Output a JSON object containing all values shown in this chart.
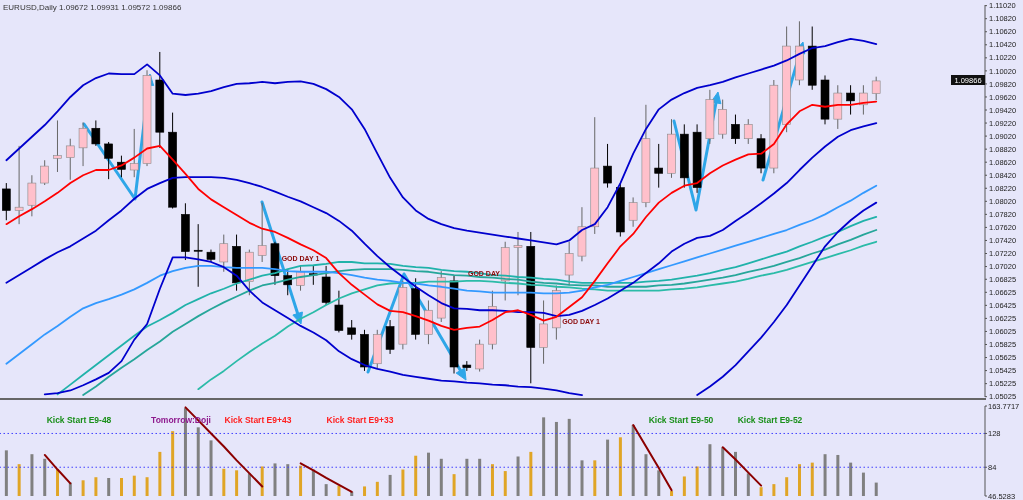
{
  "chart_data": [
    {
      "type": "candlestick",
      "title": "EURUSD,Daily 1.09672 1.09931 1.09572 1.09866",
      "categories": [
        null,
        null,
        null,
        null,
        null,
        null,
        null,
        null,
        null,
        null,
        null,
        null,
        null,
        null,
        null,
        null,
        null,
        null,
        null,
        null,
        null,
        null,
        null,
        null,
        null,
        null,
        null,
        null,
        null,
        null,
        null,
        null,
        null,
        null,
        null,
        null,
        null,
        null,
        null,
        null,
        null,
        null,
        null,
        null,
        null,
        null,
        null,
        null,
        null,
        null,
        null,
        null,
        null,
        null,
        null,
        null,
        null,
        null,
        null,
        null,
        null,
        null,
        null,
        null,
        null,
        null,
        null,
        null,
        null,
        null,
        null,
        null,
        null,
        null,
        null,
        null,
        null
      ],
      "ohlc": [
        [
          1.0821,
          1.083,
          1.0773,
          1.0788
        ],
        [
          1.0788,
          1.0887,
          1.0767,
          1.0793
        ],
        [
          1.0796,
          1.0842,
          1.0779,
          1.083
        ],
        [
          1.083,
          1.0865,
          1.0827,
          1.0856
        ],
        [
          1.0868,
          1.0926,
          1.0847,
          1.0872
        ],
        [
          1.0869,
          1.0898,
          1.0835,
          1.0887
        ],
        [
          1.0884,
          1.0923,
          1.0856,
          1.0914
        ],
        [
          1.0914,
          1.0926,
          1.0887,
          1.089
        ],
        [
          1.089,
          1.0893,
          1.0836,
          1.0868
        ],
        [
          1.0862,
          1.0872,
          1.0839,
          1.0851
        ],
        [
          1.085,
          1.0913,
          1.0839,
          1.086
        ],
        [
          1.086,
          1.1003,
          1.0856,
          1.0995
        ],
        [
          1.0988,
          1.1031,
          1.0884,
          1.0908
        ],
        [
          1.0908,
          1.0938,
          1.0791,
          1.0793
        ],
        [
          1.0782,
          1.0799,
          1.0712,
          1.0725
        ],
        [
          1.0727,
          1.0767,
          1.0671,
          1.0726
        ],
        [
          1.0724,
          1.0728,
          1.0709,
          1.0713
        ],
        [
          1.0709,
          1.0751,
          1.0694,
          1.0737
        ],
        [
          1.0733,
          1.0751,
          1.0665,
          1.0677
        ],
        [
          1.0679,
          1.0728,
          1.0658,
          1.0724
        ],
        [
          1.0719,
          1.08,
          1.0709,
          1.0734
        ],
        [
          1.0737,
          1.074,
          1.0674,
          1.0688
        ],
        [
          1.0688,
          1.0697,
          1.0658,
          1.0674
        ],
        [
          1.0673,
          1.0703,
          1.0665,
          1.0694
        ],
        [
          1.0691,
          1.0703,
          1.0674,
          1.0689
        ],
        [
          1.0686,
          1.0703,
          1.0643,
          1.0647
        ],
        [
          1.0643,
          1.0665,
          1.0601,
          1.0604
        ],
        [
          1.0608,
          1.062,
          1.059,
          1.0598
        ],
        [
          1.0598,
          1.0605,
          1.0542,
          1.0548
        ],
        [
          1.0553,
          1.0605,
          1.0545,
          1.0598
        ],
        [
          1.061,
          1.062,
          1.0568,
          1.0575
        ],
        [
          1.0583,
          1.068,
          1.0575,
          1.067
        ],
        [
          1.0668,
          1.0684,
          1.059,
          1.0598
        ],
        [
          1.0598,
          1.065,
          1.0583,
          1.0635
        ],
        [
          1.0623,
          1.0695,
          1.0617,
          1.0685
        ],
        [
          1.068,
          1.0688,
          1.0538,
          1.0548
        ],
        [
          1.0551,
          1.0557,
          1.0542,
          1.0547
        ],
        [
          1.0545,
          1.059,
          1.0541,
          1.0583
        ],
        [
          1.0583,
          1.0665,
          1.0575,
          1.0641
        ],
        [
          1.068,
          1.074,
          1.065,
          1.0731
        ],
        [
          1.0731,
          1.0755,
          1.0658,
          1.0734
        ],
        [
          1.0733,
          1.0755,
          1.0523,
          1.0578
        ],
        [
          1.0578,
          1.065,
          1.0553,
          1.0614
        ],
        [
          1.0608,
          1.0673,
          1.059,
          1.0665
        ],
        [
          1.0689,
          1.074,
          1.0673,
          1.0722
        ],
        [
          1.0718,
          1.0793,
          1.071,
          1.0763
        ],
        [
          1.0763,
          1.0931,
          1.0752,
          1.0853
        ],
        [
          1.0856,
          1.089,
          1.0823,
          1.083
        ],
        [
          1.0823,
          1.083,
          1.0748,
          1.0755
        ],
        [
          1.0773,
          1.0808,
          1.0763,
          1.08
        ],
        [
          1.08,
          1.095,
          1.0793,
          1.0898
        ],
        [
          1.0853,
          1.089,
          1.0823,
          1.0845
        ],
        [
          1.0845,
          1.0928,
          1.0838,
          1.0905
        ],
        [
          1.0905,
          1.092,
          1.0823,
          1.0838
        ],
        [
          1.0908,
          1.092,
          1.0815,
          1.0823
        ],
        [
          1.0898,
          1.0973,
          1.089,
          1.0958
        ],
        [
          1.0905,
          1.0958,
          1.0898,
          1.0943
        ],
        [
          1.092,
          1.0935,
          1.089,
          1.0898
        ],
        [
          1.0898,
          1.0928,
          1.089,
          1.092
        ],
        [
          1.0898,
          1.0905,
          1.0845,
          1.0853
        ],
        [
          1.0853,
          1.0988,
          1.0845,
          1.098
        ],
        [
          1.092,
          1.107,
          1.0908,
          1.104
        ],
        [
          1.0988,
          1.1078,
          1.098,
          1.104
        ],
        [
          1.104,
          1.107,
          1.0973,
          1.098
        ],
        [
          1.0988,
          1.0995,
          1.092,
          1.0928
        ],
        [
          1.0928,
          1.098,
          1.0913,
          1.0968
        ],
        [
          1.0968,
          1.098,
          1.0935,
          1.0956
        ],
        [
          1.095,
          1.098,
          1.0935,
          1.0968
        ],
        [
          1.09672,
          1.09931,
          1.09572,
          1.09866
        ],
        null,
        null,
        null,
        null,
        null,
        null,
        null,
        null
      ],
      "colors": [
        "#000000",
        "#ffc0cb",
        "#ffc0cb",
        "#ffc0cb",
        "#ffc0cb",
        "#ffc0cb",
        "#ffc0cb",
        "#000000",
        "#000000",
        "#000000",
        "#ffc0cb",
        "#ffc0cb",
        "#000000",
        "#000000",
        "#000000",
        "#000000",
        "#000000",
        "#ffc0cb",
        "#000000",
        "#ffc0cb",
        "#ffc0cb",
        "#000000",
        "#000000",
        "#ffc0cb",
        "#000000",
        "#000000",
        "#000000",
        "#000000",
        "#000000",
        "#ffc0cb",
        "#000000",
        "#ffc0cb",
        "#000000",
        "#ffc0cb",
        "#ffc0cb",
        "#000000",
        "#000000",
        "#ffc0cb",
        "#ffc0cb",
        "#ffc0cb",
        "#ffc0cb",
        "#000000",
        "#ffc0cb",
        "#ffc0cb",
        "#ffc0cb",
        "#ffc0cb",
        "#ffc0cb",
        "#000000",
        "#000000",
        "#ffc0cb",
        "#ffc0cb",
        "#000000",
        "#ffc0cb",
        "#000000",
        "#000000",
        "#ffc0cb",
        "#ffc0cb",
        "#000000",
        "#ffc0cb",
        "#000000",
        "#ffc0cb",
        "#ffc0cb",
        "#ffc0cb",
        "#000000",
        "#000000",
        "#ffc0cb",
        "#000000",
        "#ffc0cb",
        "#ffc0cb",
        null,
        null,
        null,
        null,
        null,
        null,
        null,
        null
      ],
      "series": [
        {
          "type": "line",
          "color": "#20b2aa",
          "values": [
            null,
            null,
            null,
            null,
            1.0506,
            1.0521,
            1.0536,
            1.0551,
            1.0566,
            1.0581,
            1.0596,
            1.061,
            1.062,
            1.0631,
            1.0643,
            1.0652,
            1.0661,
            1.0668,
            1.0676,
            1.0682,
            1.0688,
            1.0692,
            1.0698,
            1.0703,
            1.0704,
            1.0706,
            1.0709,
            1.0709,
            1.0707,
            1.0707,
            1.0706,
            1.0703,
            1.0701,
            1.07,
            1.0697,
            1.0695,
            1.0694,
            1.0692,
            1.0689,
            1.0688,
            1.0686,
            1.0685,
            1.0683,
            1.0682,
            1.0679,
            1.0677,
            1.0677,
            1.0677,
            1.0677,
            1.0677,
            1.0679,
            1.068,
            1.0682,
            1.0685,
            1.0688,
            1.0692,
            1.0697,
            1.0701,
            1.0707,
            1.0713,
            1.0719,
            1.0725,
            1.0733,
            1.074,
            1.0748,
            1.0755,
            1.0764,
            1.0772,
            1.0778,
            null,
            null,
            null,
            null,
            null,
            null,
            null,
            null
          ]
        },
        {
          "type": "line",
          "color": "#26a69a",
          "values": [
            null,
            null,
            null,
            null,
            null,
            null,
            1.0505,
            1.0518,
            1.0533,
            1.0547,
            1.056,
            1.0574,
            1.0587,
            1.0602,
            1.0614,
            1.0626,
            1.0637,
            1.0647,
            1.0656,
            1.0665,
            1.0673,
            1.0677,
            1.0682,
            1.0686,
            1.0689,
            1.0692,
            1.0695,
            1.0697,
            1.0698,
            1.0698,
            1.0698,
            1.0697,
            1.0695,
            1.0694,
            1.0691,
            1.0689,
            1.0688,
            1.0686,
            1.0685,
            1.0683,
            1.0682,
            1.0679,
            1.0677,
            1.0676,
            1.0674,
            1.0673,
            1.0673,
            1.0671,
            1.0671,
            1.0671,
            1.0671,
            1.0673,
            1.0674,
            1.0676,
            1.0679,
            1.0682,
            1.0685,
            1.0689,
            1.0694,
            1.0698,
            1.0703,
            1.0709,
            1.0715,
            1.0722,
            1.0728,
            1.0736,
            1.0743,
            1.0751,
            1.0758,
            null,
            null,
            null,
            null,
            null,
            null,
            null,
            null
          ]
        },
        {
          "type": "line",
          "color": "#2bbba8",
          "values": [
            null,
            null,
            null,
            null,
            null,
            null,
            null,
            null,
            null,
            null,
            null,
            null,
            null,
            null,
            null,
            1.0514,
            1.0529,
            1.0542,
            1.0557,
            1.0571,
            1.0584,
            1.0596,
            1.061,
            1.0622,
            1.0632,
            1.0643,
            1.0653,
            1.0661,
            1.0667,
            1.0673,
            1.0676,
            1.0677,
            1.0677,
            1.0679,
            1.0679,
            1.0679,
            1.068,
            1.068,
            1.0679,
            1.0677,
            1.0676,
            1.0674,
            1.0673,
            1.0671,
            1.067,
            1.0668,
            1.0667,
            1.0665,
            1.0665,
            1.0665,
            1.0665,
            1.0665,
            1.0667,
            1.0668,
            1.067,
            1.0673,
            1.0676,
            1.0679,
            1.0683,
            1.0688,
            1.0692,
            1.0697,
            1.0703,
            1.0709,
            1.0715,
            1.0721,
            1.0727,
            1.0734,
            1.074,
            null,
            null,
            null,
            null,
            null,
            null,
            null,
            null
          ]
        },
        {
          "type": "line",
          "color": "#3399ff",
          "values": [
            1.0553,
            1.0568,
            1.0583,
            1.0598,
            1.0611,
            1.0625,
            1.0638,
            1.0646,
            1.0652,
            1.0659,
            1.0667,
            1.0677,
            1.0688,
            1.0695,
            1.07,
            1.0703,
            1.0703,
            1.0701,
            1.07,
            1.07,
            1.07,
            1.0698,
            1.0695,
            1.0694,
            1.0694,
            1.0694,
            1.0692,
            1.0689,
            1.0685,
            1.0682,
            1.068,
            1.0677,
            1.0676,
            1.0673,
            1.0671,
            1.0668,
            1.0665,
            1.0664,
            1.0662,
            1.0662,
            1.0662,
            1.0662,
            1.0661,
            1.0661,
            1.0662,
            1.0665,
            1.067,
            1.0674,
            1.068,
            1.0686,
            1.0692,
            1.0698,
            1.0704,
            1.071,
            1.0716,
            1.0722,
            1.0728,
            1.0734,
            1.074,
            1.0746,
            1.0752,
            1.0758,
            1.0766,
            1.0773,
            1.0782,
            1.0793,
            1.0803,
            1.0815,
            1.0826,
            null,
            null,
            null,
            null,
            null,
            null,
            null,
            null
          ]
        },
        {
          "type": "line",
          "color": "#0000cd",
          "values": [
            1.0865,
            1.0883,
            1.0901,
            1.0919,
            1.094,
            1.0962,
            1.098,
            1.0991,
            1.0998,
            1.0997,
            1.0997,
            1.1012,
            1.0995,
            1.0967,
            1.0965,
            1.0967,
            1.0971,
            1.0977,
            1.0982,
            1.0983,
            1.0985,
            1.0983,
            1.0985,
            1.0986,
            1.0982,
            1.0974,
            1.0962,
            1.0943,
            1.0913,
            1.0875,
            1.0838,
            1.0808,
            1.0788,
            1.0775,
            1.0767,
            1.0761,
            1.0757,
            1.0754,
            1.0751,
            1.0748,
            1.0745,
            1.0742,
            1.0739,
            1.0736,
            1.0742,
            1.0758,
            1.0767,
            1.0793,
            1.083,
            1.0875,
            1.0913,
            1.0943,
            1.0958,
            1.0968,
            1.0976,
            1.098,
            1.0985,
            1.0992,
            1.0998,
            1.1004,
            1.101,
            1.1018,
            1.1028,
            1.1037,
            1.104,
            1.1046,
            1.1051,
            1.1048,
            1.1043,
            null,
            null,
            null,
            null,
            null,
            null,
            null,
            null
          ]
        },
        {
          "type": "line",
          "color": "#0000cd",
          "values": [
            1.0677,
            1.0689,
            1.0701,
            1.0713,
            1.0724,
            1.0733,
            1.0745,
            1.0757,
            1.0773,
            1.0788,
            1.0806,
            1.0821,
            1.083,
            1.0838,
            1.0839,
            1.0839,
            1.0839,
            1.0838,
            1.0835,
            1.083,
            1.0824,
            1.0817,
            1.0809,
            1.0802,
            1.0793,
            1.0784,
            1.0772,
            1.0757,
            1.0737,
            1.0718,
            1.0701,
            1.0686,
            1.0671,
            1.0658,
            1.0646,
            1.0638,
            1.0637,
            1.0635,
            1.0635,
            1.0634,
            1.0632,
            1.0632,
            1.0631,
            1.0626,
            1.0628,
            1.0634,
            1.0643,
            1.0653,
            1.0665,
            1.0677,
            1.0692,
            1.0707,
            1.0725,
            1.0737,
            1.0746,
            1.0749,
            1.0758,
            1.0772,
            1.0785,
            1.0799,
            1.0814,
            1.083,
            1.085,
            1.0869,
            1.0886,
            1.0901,
            1.0911,
            1.0917,
            1.0922,
            null,
            null,
            null,
            null,
            null,
            null,
            null,
            null
          ]
        },
        {
          "type": "line",
          "color": "#0000cd",
          "values": [
            null,
            null,
            null,
            1.0506,
            1.0508,
            1.0512,
            1.052,
            1.0529,
            1.0539,
            1.0557,
            1.059,
            1.0614,
            1.0668,
            1.0716,
            1.0716,
            1.0713,
            1.0709,
            1.0701,
            1.0688,
            1.0665,
            1.0647,
            1.0635,
            1.0623,
            1.0611,
            1.0601,
            1.0589,
            1.0572,
            1.056,
            1.0551,
            1.0545,
            1.0541,
            1.0536,
            1.0533,
            1.053,
            1.0527,
            1.0526,
            1.0524,
            1.0523,
            1.0521,
            1.052,
            1.0518,
            1.0517,
            1.0515,
            1.0512,
            1.0508,
            1.0505,
            null,
            null,
            null,
            null,
            null,
            null,
            null,
            null,
            1.0505,
            1.0518,
            1.0533,
            1.0551,
            1.0572,
            1.0593,
            1.0617,
            1.0643,
            1.0673,
            1.0703,
            1.0733,
            1.0755,
            1.0773,
            1.0788,
            1.08,
            null,
            null,
            null,
            null,
            null,
            null,
            null,
            null
          ]
        },
        {
          "type": "line",
          "color": "#ff0000",
          "values": [
            1.0767,
            1.0779,
            1.079,
            1.0802,
            1.0815,
            1.083,
            1.0842,
            1.085,
            1.085,
            1.0857,
            1.0869,
            1.0883,
            1.0887,
            1.0866,
            1.0844,
            1.0821,
            1.0805,
            1.0793,
            1.0781,
            1.0769,
            1.076,
            1.0755,
            1.0746,
            1.0736,
            1.0727,
            1.0715,
            1.0692,
            1.0674,
            1.0659,
            1.0644,
            1.0634,
            1.0632,
            1.0626,
            1.0619,
            1.0611,
            1.0605,
            1.0608,
            1.061,
            1.062,
            1.0632,
            1.0635,
            1.0628,
            1.0619,
            1.0625,
            1.064,
            1.0655,
            1.068,
            1.0707,
            1.0733,
            1.0752,
            1.0778,
            1.08,
            1.0815,
            1.0826,
            1.083,
            1.0845,
            1.0857,
            1.0866,
            1.0874,
            1.0875,
            1.089,
            1.092,
            1.094,
            1.095,
            1.0947,
            1.095,
            1.095,
            1.0953,
            1.0955,
            null,
            null,
            null,
            null,
            null,
            null,
            null,
            null
          ]
        }
      ],
      "ylim": [
        1.0502,
        1.1103
      ],
      "yticks": [
        1.05025,
        1.05225,
        1.05425,
        1.05625,
        1.05825,
        1.06025,
        1.06225,
        1.06425,
        1.06625,
        1.06825,
        {
          "value": 1.0702,
          "label": "1.07020"
        },
        {
          "value": 1.0722,
          "label": "1.07220"
        },
        {
          "value": 1.0742,
          "label": "1.07420"
        },
        {
          "value": 1.0762,
          "label": "1.07620"
        },
        {
          "value": 1.0782,
          "label": "1.07820"
        },
        {
          "value": 1.0802,
          "label": "1.08020"
        },
        {
          "value": 1.0822,
          "label": "1.08220"
        },
        {
          "value": 1.0842,
          "label": "1.08420"
        },
        {
          "value": 1.0862,
          "label": "1.08620"
        },
        {
          "value": 1.0882,
          "label": "1.08820"
        },
        {
          "value": 1.0902,
          "label": "1.09020"
        },
        {
          "value": 1.0922,
          "label": "1.09220"
        },
        {
          "value": 1.0942,
          "label": "1.09420"
        },
        {
          "value": 1.0962,
          "label": "1.09620"
        },
        {
          "value": 1.0982,
          "label": "1.09820"
        },
        {
          "value": 1.1002,
          "label": "1.10020"
        },
        {
          "value": 1.1022,
          "label": "1.10220"
        },
        {
          "value": 1.1042,
          "label": "1.10420"
        },
        {
          "value": 1.1062,
          "label": "1.10620"
        },
        {
          "value": 1.1082,
          "label": "1.10820"
        },
        {
          "value": 1.1102,
          "label": "1.11020"
        }
      ],
      "annotations": [
        "GOD DAY 1",
        "GOD DAY",
        "GOD DAY 1",
        "1.09866"
      ]
    },
    {
      "type": "bar",
      "categories": [
        null,
        null,
        null,
        null,
        null,
        null,
        null,
        null,
        null,
        null,
        null,
        null,
        null,
        null,
        null,
        null,
        null,
        null,
        null,
        null,
        null,
        null,
        null,
        null,
        null,
        null,
        null,
        null,
        null,
        null,
        null,
        null,
        null,
        null,
        null,
        null,
        null,
        null,
        null,
        null,
        null,
        null,
        null,
        null,
        null,
        null,
        null,
        null,
        null,
        null,
        null,
        null,
        null,
        null,
        null,
        null,
        null,
        null,
        null,
        null,
        null,
        null,
        null,
        null,
        null,
        null,
        null,
        null,
        null,
        null,
        null,
        null,
        null,
        null,
        null,
        null,
        null
      ],
      "series": [
        {
          "type": "bar",
          "values": [
            106,
            88,
            101,
            95,
            81,
            64,
            67,
            71,
            70,
            70,
            73,
            71,
            104,
            131,
            161,
            136,
            119,
            82,
            80,
            76,
            85,
            89,
            88,
            86,
            81,
            62,
            60,
            52,
            59,
            65,
            74,
            81,
            99,
            103,
            95,
            75,
            95,
            95,
            88,
            79,
            98,
            104,
            149,
            143,
            147,
            93,
            93,
            120,
            123,
            139,
            101,
            80,
            53,
            72,
            85,
            114,
            110,
            104,
            76,
            58,
            62,
            71,
            88,
            90,
            101,
            100,
            90,
            77,
            64,
            null,
            null,
            null,
            null,
            null,
            null,
            null,
            null
          ],
          "colors": [
            "#808080",
            "#e0a526",
            "#808080",
            "#808080",
            "#e0a526",
            "#808080",
            "#e0a526",
            "#e0a526",
            "#808080",
            "#e0a526",
            "#e0a526",
            "#e0a526",
            "#e0a526",
            "#e0a526",
            "#808080",
            "#808080",
            "#808080",
            "#e0a526",
            "#e0a526",
            "#808080",
            "#e0a526",
            "#808080",
            "#808080",
            "#e0a526",
            "#808080",
            "#808080",
            "#e0a526",
            "#808080",
            "#e0a526",
            "#e0a526",
            "#808080",
            "#e0a526",
            "#e0a526",
            "#808080",
            "#808080",
            "#e0a526",
            "#808080",
            "#808080",
            "#e0a526",
            "#e0a526",
            "#808080",
            "#e0a526",
            "#808080",
            "#808080",
            "#808080",
            "#808080",
            "#e0a526",
            "#808080",
            "#e0a526",
            "#808080",
            "#808080",
            "#808080",
            "#e0a526",
            "#e0a526",
            "#e0a526",
            "#808080",
            "#808080",
            "#808080",
            "#808080",
            "#e0a526",
            "#e0a526",
            "#e0a526",
            "#e0a526",
            "#e0a526",
            "#808080",
            "#808080",
            "#808080",
            "#808080",
            "#808080",
            null,
            null,
            null,
            null,
            null,
            null,
            null,
            null
          ]
        },
        {
          "type": "line",
          "color": "#8b0000",
          "values": [
            null,
            null,
            null,
            100,
            81,
            63,
            null,
            null,
            null,
            null,
            null,
            null,
            null,
            null,
            null,
            null,
            null,
            null,
            null,
            null,
            null,
            null,
            null,
            null,
            null,
            null,
            null,
            null,
            null,
            null,
            null,
            null,
            null,
            null,
            null,
            null,
            null,
            null,
            null,
            null,
            null,
            null,
            null,
            null,
            null,
            null,
            null,
            null,
            null,
            null,
            null,
            null,
            null,
            null,
            null,
            null,
            null,
            null,
            null,
            null,
            null,
            null,
            null,
            null,
            null,
            null,
            null,
            null,
            null,
            null,
            null,
            null,
            null,
            null,
            null,
            null,
            null
          ]
        },
        {
          "type": "line",
          "color": "#8b0000",
          "values": [
            null,
            null,
            null,
            null,
            null,
            null,
            null,
            null,
            null,
            null,
            null,
            null,
            null,
            null,
            162,
            145,
            128,
            111,
            93,
            76,
            59,
            null,
            null,
            null,
            null,
            null,
            null,
            null,
            null,
            null,
            null,
            null,
            null,
            null,
            null,
            null,
            null,
            null,
            null,
            null,
            null,
            null,
            null,
            null,
            null,
            null,
            null,
            null,
            null,
            null,
            null,
            null,
            null,
            null,
            null,
            null,
            null,
            null,
            null,
            null,
            null,
            null,
            null,
            null,
            null,
            null,
            null,
            null,
            null,
            null,
            null,
            null,
            null,
            null,
            null,
            null,
            null
          ]
        },
        {
          "type": "line",
          "color": "#8b0000",
          "values": [
            null,
            null,
            null,
            null,
            null,
            null,
            null,
            null,
            null,
            null,
            null,
            null,
            null,
            null,
            null,
            null,
            null,
            null,
            null,
            null,
            null,
            null,
            null,
            89,
            80,
            70,
            61,
            52,
            null,
            null,
            null,
            null,
            null,
            null,
            null,
            null,
            null,
            null,
            null,
            null,
            null,
            null,
            null,
            null,
            null,
            null,
            null,
            null,
            null,
            null,
            null,
            null,
            null,
            null,
            null,
            null,
            null,
            null,
            null,
            null,
            null,
            null,
            null,
            null,
            null,
            null,
            null,
            null,
            null,
            null,
            null,
            null,
            null,
            null,
            null,
            null,
            null
          ]
        },
        {
          "type": "line",
          "color": "#8b0000",
          "values": [
            null,
            null,
            null,
            null,
            null,
            null,
            null,
            null,
            null,
            null,
            null,
            null,
            null,
            null,
            null,
            null,
            null,
            null,
            null,
            null,
            null,
            null,
            null,
            null,
            null,
            null,
            null,
            null,
            null,
            null,
            null,
            null,
            null,
            null,
            null,
            null,
            null,
            null,
            null,
            null,
            null,
            null,
            null,
            null,
            null,
            null,
            null,
            null,
            null,
            139,
            111,
            83,
            54,
            null,
            null,
            null,
            null,
            null,
            null,
            null,
            null,
            null,
            null,
            null,
            null,
            null,
            null,
            null,
            null,
            null,
            null,
            null,
            null,
            null,
            null,
            null,
            null
          ]
        },
        {
          "type": "line",
          "color": "#8b0000",
          "values": [
            null,
            null,
            null,
            null,
            null,
            null,
            null,
            null,
            null,
            null,
            null,
            null,
            null,
            null,
            null,
            null,
            null,
            null,
            null,
            null,
            null,
            null,
            null,
            null,
            null,
            null,
            null,
            null,
            null,
            null,
            null,
            null,
            null,
            null,
            null,
            null,
            null,
            null,
            null,
            null,
            null,
            null,
            null,
            null,
            null,
            null,
            null,
            null,
            null,
            null,
            null,
            null,
            null,
            null,
            null,
            null,
            110,
            94,
            77,
            60,
            null,
            null,
            null,
            null,
            null,
            null,
            null,
            null,
            null,
            null,
            null,
            null,
            null,
            null,
            null,
            null,
            null
          ]
        }
      ],
      "ylim": [
        46.5283,
        163.7717
      ],
      "yticks": [
        46.5283,
        84,
        128,
        163.7717
      ],
      "ref_lines": [
        {
          "axis": "y",
          "value": 128,
          "color": "#4040ff",
          "line_style": "dotted"
        },
        {
          "axis": "y",
          "value": 84,
          "color": "#4040ff",
          "line_style": "dotted"
        }
      ],
      "annotations": [
        "Kick Start E9-48",
        "Tomorrow:Doji",
        "Kick Start E9+43",
        "Kick Start E9+33",
        "Kick Start E9-50",
        "Kick Start E9-52"
      ]
    }
  ]
}
